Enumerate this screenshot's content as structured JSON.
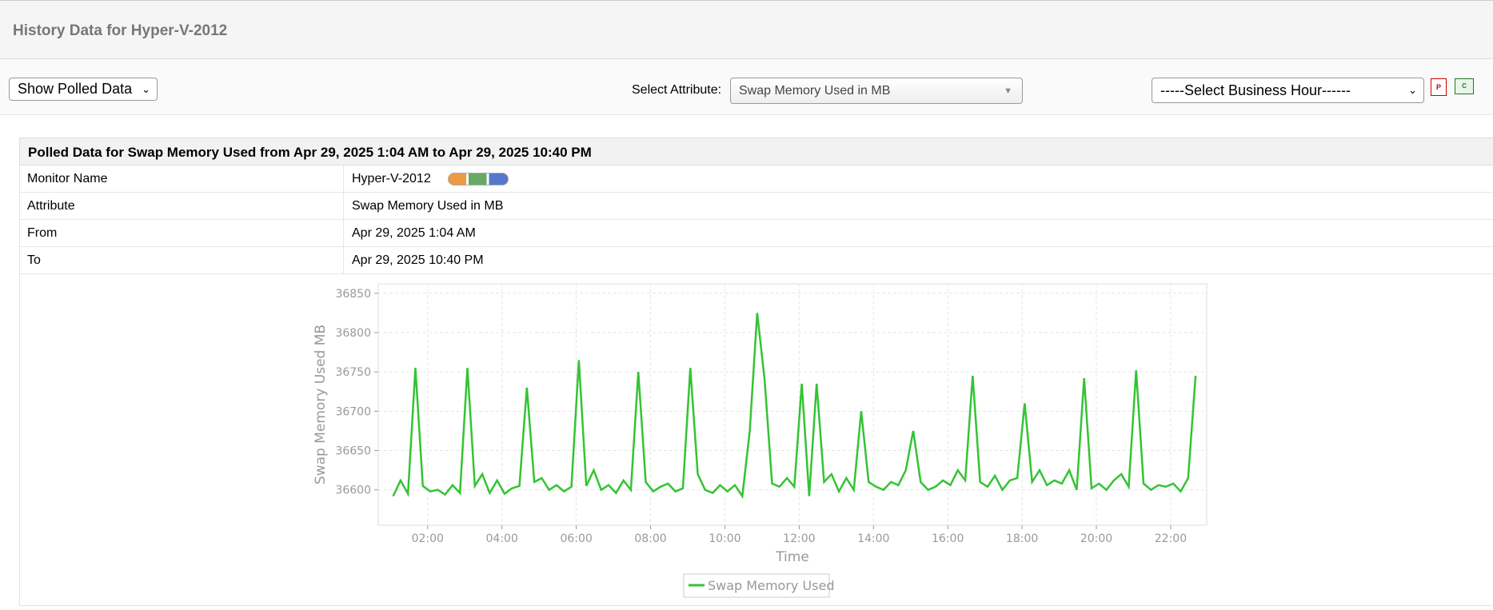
{
  "header": {
    "title": "History Data for Hyper-V-2012"
  },
  "toolbar": {
    "view_select": "Show Polled Data",
    "attribute_label": "Select Attribute:",
    "attribute_select": "Swap Memory Used in MB",
    "business_hour_select": "-----Select Business Hour------"
  },
  "panel": {
    "title": "Polled Data for Swap Memory Used from Apr 29, 2025 1:04 AM to Apr 29, 2025 10:40 PM",
    "rows": [
      {
        "label": "Monitor Name",
        "value": "Hyper-V-2012"
      },
      {
        "label": "Attribute",
        "value": "Swap Memory Used in MB"
      },
      {
        "label": "From",
        "value": "Apr 29, 2025 1:04 AM"
      },
      {
        "label": "To",
        "value": "Apr 29, 2025 10:40 PM"
      }
    ]
  },
  "chart_data": {
    "type": "line",
    "x_label": "Time",
    "y_label": "Swap Memory Used MB",
    "xlim": [
      0.67,
      22.97
    ],
    "xticks": [
      {
        "value": 2,
        "label": "02:00"
      },
      {
        "value": 4,
        "label": "04:00"
      },
      {
        "value": 6,
        "label": "06:00"
      },
      {
        "value": 8,
        "label": "08:00"
      },
      {
        "value": 10,
        "label": "10:00"
      },
      {
        "value": 12,
        "label": "12:00"
      },
      {
        "value": 14,
        "label": "14:00"
      },
      {
        "value": 16,
        "label": "16:00"
      },
      {
        "value": 18,
        "label": "18:00"
      },
      {
        "value": 20,
        "label": "20:00"
      },
      {
        "value": 22,
        "label": "22:00"
      }
    ],
    "ylim": [
      36555,
      36862
    ],
    "yticks": [
      36600,
      36650,
      36700,
      36750,
      36800,
      36850
    ],
    "grid": true,
    "x": [
      1.07,
      1.27,
      1.47,
      1.67,
      1.87,
      2.07,
      2.27,
      2.47,
      2.67,
      2.87,
      3.07,
      3.27,
      3.47,
      3.67,
      3.87,
      4.07,
      4.27,
      4.47,
      4.67,
      4.87,
      5.07,
      5.27,
      5.47,
      5.67,
      5.87,
      6.07,
      6.27,
      6.47,
      6.67,
      6.87,
      7.07,
      7.27,
      7.47,
      7.67,
      7.87,
      8.07,
      8.27,
      8.47,
      8.67,
      8.87,
      9.07,
      9.27,
      9.47,
      9.67,
      9.87,
      10.07,
      10.27,
      10.47,
      10.67,
      10.87,
      11.07,
      11.27,
      11.47,
      11.67,
      11.87,
      12.07,
      12.27,
      12.47,
      12.67,
      12.87,
      13.07,
      13.27,
      13.47,
      13.67,
      13.87,
      14.07,
      14.27,
      14.47,
      14.67,
      14.87,
      15.07,
      15.27,
      15.47,
      15.67,
      15.87,
      16.07,
      16.27,
      16.47,
      16.67,
      16.87,
      17.07,
      17.27,
      17.47,
      17.67,
      17.87,
      18.07,
      18.27,
      18.47,
      18.67,
      18.87,
      19.07,
      19.27,
      19.47,
      19.67,
      19.87,
      20.07,
      20.27,
      20.47,
      20.67,
      20.87,
      21.07,
      21.27,
      21.47,
      21.67,
      21.87,
      22.07,
      22.27,
      22.47,
      22.67
    ],
    "series": [
      {
        "name": "Swap Memory Used",
        "color": "#33c433",
        "values": [
          36592,
          36612,
          36595,
          36755,
          36605,
          36598,
          36600,
          36594,
          36606,
          36596,
          36755,
          36605,
          36620,
          36596,
          36612,
          36595,
          36602,
          36605,
          36730,
          36610,
          36615,
          36600,
          36606,
          36598,
          36604,
          36765,
          36605,
          36625,
          36600,
          36606,
          36596,
          36612,
          36600,
          36750,
          36610,
          36598,
          36604,
          36608,
          36598,
          36602,
          36755,
          36620,
          36600,
          36596,
          36606,
          36598,
          36606,
          36592,
          36675,
          36825,
          36740,
          36608,
          36604,
          36615,
          36604,
          36735,
          36592,
          36735,
          36610,
          36620,
          36598,
          36615,
          36600,
          36700,
          36610,
          36604,
          36600,
          36610,
          36606,
          36625,
          36675,
          36610,
          36600,
          36604,
          36612,
          36606,
          36625,
          36612,
          36745,
          36610,
          36604,
          36618,
          36600,
          36612,
          36615,
          36710,
          36610,
          36625,
          36606,
          36612,
          36608,
          36625,
          36600,
          36742,
          36602,
          36608,
          36600,
          36612,
          36620,
          36604,
          36752,
          36608,
          36600,
          36606,
          36604,
          36608,
          36598,
          36615,
          36745
        ]
      }
    ]
  }
}
